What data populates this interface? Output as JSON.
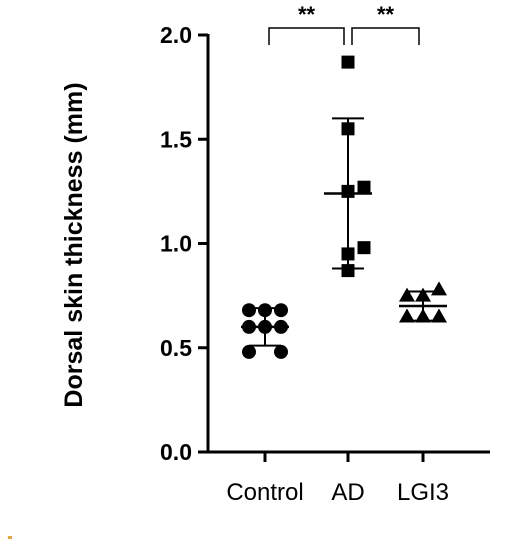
{
  "chart_data": {
    "type": "scatter",
    "title": "",
    "xlabel": "",
    "ylabel": "Dorsal skin thickness (mm)",
    "ylim": [
      0,
      2.0
    ],
    "yticks": [
      "0.0",
      "0.5",
      "1.0",
      "1.5",
      "2.0"
    ],
    "grid": false,
    "categories": [
      "Control",
      "AD",
      "LGI3"
    ],
    "series": [
      {
        "category": "Control",
        "marker": "circle",
        "points": [
          {
            "offset": -1,
            "value": 0.68
          },
          {
            "offset": 0,
            "value": 0.68
          },
          {
            "offset": 1,
            "value": 0.68
          },
          {
            "offset": -1,
            "value": 0.6
          },
          {
            "offset": 0,
            "value": 0.6
          },
          {
            "offset": 1,
            "value": 0.6
          },
          {
            "offset": -1,
            "value": 0.48
          },
          {
            "offset": 1,
            "value": 0.48
          }
        ],
        "mean": 0.6,
        "sd": 0.09
      },
      {
        "category": "AD",
        "marker": "square",
        "points": [
          {
            "offset": 0,
            "value": 1.87
          },
          {
            "offset": 0,
            "value": 1.55
          },
          {
            "offset": 0,
            "value": 1.25
          },
          {
            "offset": 1,
            "value": 1.27
          },
          {
            "offset": 0,
            "value": 0.95
          },
          {
            "offset": 1,
            "value": 0.98
          },
          {
            "offset": 0,
            "value": 0.87
          }
        ],
        "mean": 1.24,
        "sd": 0.36
      },
      {
        "category": "LGI3",
        "marker": "triangle",
        "points": [
          {
            "offset": -1,
            "value": 0.75
          },
          {
            "offset": 0,
            "value": 0.75
          },
          {
            "offset": 1,
            "value": 0.78
          },
          {
            "offset": -1,
            "value": 0.65
          },
          {
            "offset": 0,
            "value": 0.65
          },
          {
            "offset": 1,
            "value": 0.65
          }
        ],
        "mean": 0.7,
        "sd": 0.07
      }
    ],
    "significance": [
      {
        "from": "Control",
        "to": "AD",
        "label": "**"
      },
      {
        "from": "AD",
        "to": "LGI3",
        "label": "**"
      }
    ]
  }
}
